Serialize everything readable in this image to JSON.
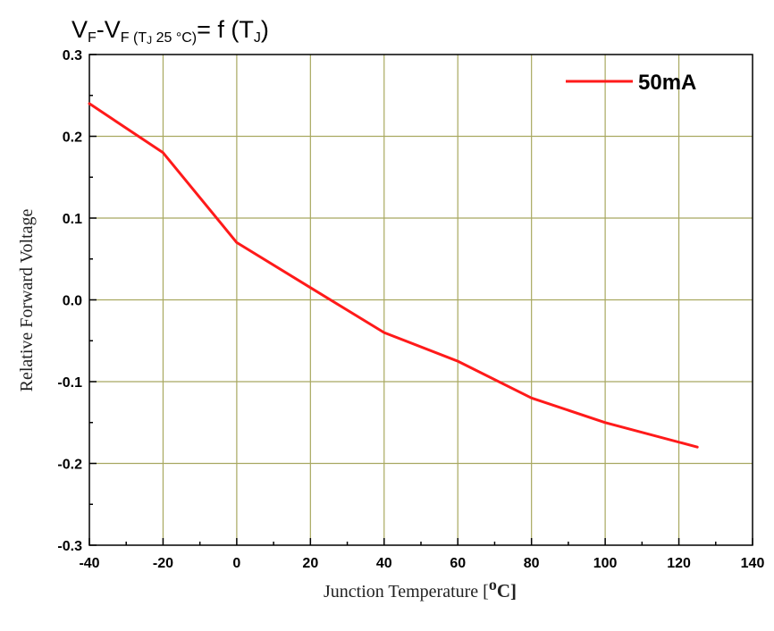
{
  "chart_data": {
    "type": "line",
    "title": {
      "v1": "V",
      "sub1": "F",
      "dash": "-V",
      "sub2": "F",
      "paren_open": " (T",
      "sub_j": "J",
      "temp": " 25 °C)",
      "eq": "= f (T",
      "sub_j2": "J",
      "close": ")"
    },
    "xlabel": {
      "text": "Junction Temperature [",
      "sup": "o",
      "unit": "C]"
    },
    "ylabel": "Relative Forward Voltage",
    "xlim": [
      -40,
      140
    ],
    "ylim": [
      -0.3,
      0.3
    ],
    "x_ticks": [
      -40,
      -20,
      0,
      20,
      40,
      60,
      80,
      100,
      120,
      140
    ],
    "x_tick_labels": [
      "-40",
      "-20",
      "0",
      "20",
      "40",
      "60",
      "80",
      "100",
      "120",
      "140"
    ],
    "y_ticks": [
      -0.3,
      -0.2,
      -0.1,
      0.0,
      0.1,
      0.2,
      0.3
    ],
    "y_tick_labels": [
      "-0.3",
      "-0.2",
      "-0.1",
      "0.0",
      "0.1",
      "0.2",
      "0.3"
    ],
    "grid": true,
    "legend_position": "top-right",
    "colors": {
      "series": "#ff1a1a",
      "grid": "#a8a860",
      "axis": "#000000"
    },
    "series": [
      {
        "name": "50mA",
        "x": [
          -40,
          -20,
          0,
          20,
          40,
          60,
          80,
          100,
          125
        ],
        "y": [
          0.24,
          0.18,
          0.07,
          0.015,
          -0.04,
          -0.075,
          -0.12,
          -0.15,
          -0.18
        ]
      }
    ]
  }
}
